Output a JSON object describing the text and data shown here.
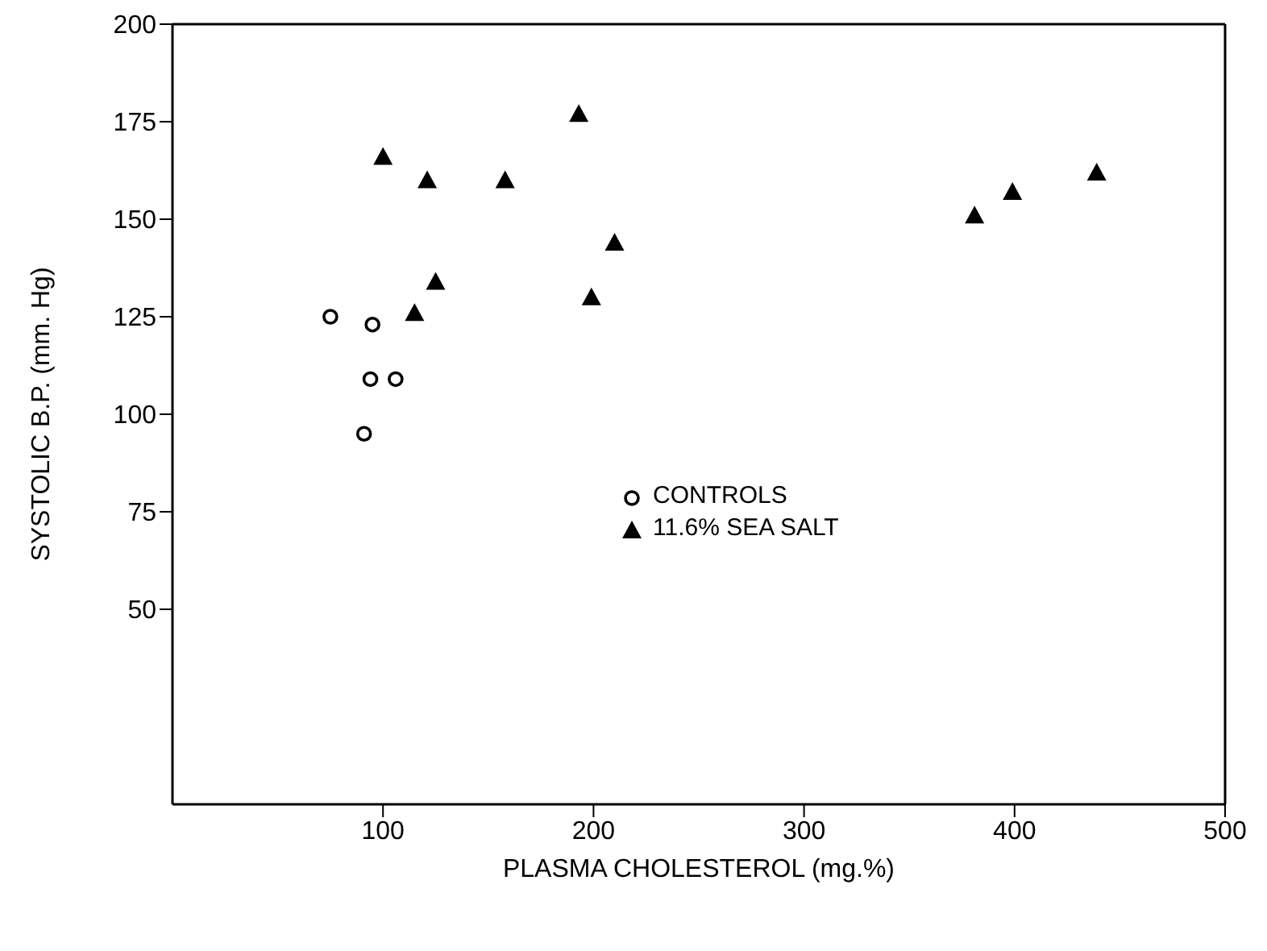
{
  "chart_data": {
    "type": "scatter",
    "xlabel": "PLASMA  CHOLESTEROL (mg.%)",
    "ylabel": "SYSTOLIC B.P. (mm. Hg)",
    "xlim": [
      0,
      500
    ],
    "xticks": [
      100,
      200,
      300,
      400,
      500
    ],
    "ylim": [
      0,
      200
    ],
    "yticks": [
      50,
      75,
      100,
      125,
      150,
      175,
      200
    ],
    "legend": "center",
    "series": [
      {
        "name": "CONTROLS",
        "color": "#000000",
        "marker": "circle",
        "x": [
          75,
          95,
          94,
          106,
          91
        ],
        "values": [
          125,
          123,
          109,
          109,
          95
        ]
      },
      {
        "name": "11.6% SEA SALT",
        "color": "#000000",
        "marker": "triangle",
        "x": [
          100,
          121,
          158,
          193,
          125,
          115,
          199,
          210,
          381,
          399,
          439
        ],
        "values": [
          166,
          160,
          160,
          177,
          134,
          126,
          130,
          144,
          151,
          157,
          162
        ]
      }
    ]
  }
}
